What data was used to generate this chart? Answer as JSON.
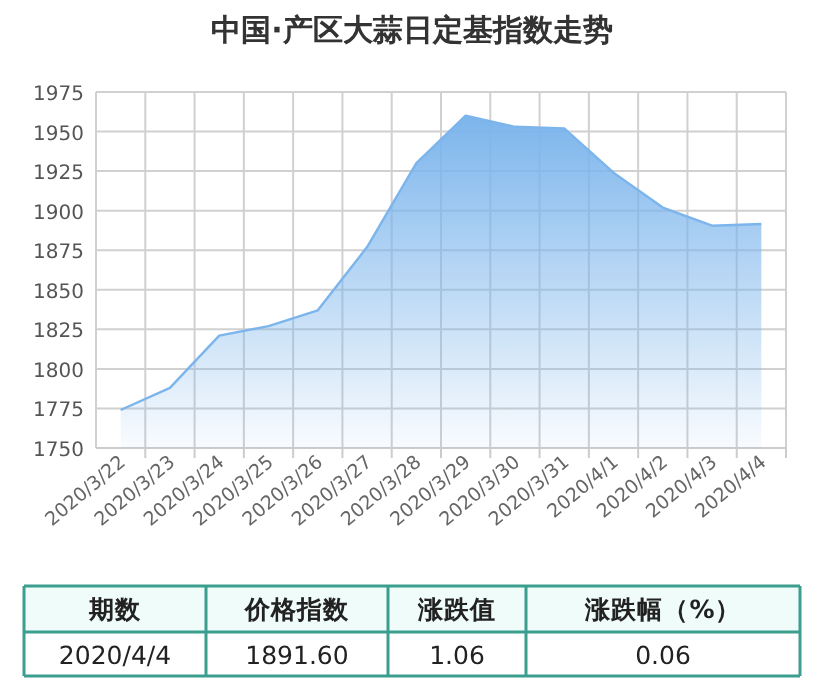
{
  "chart_data": {
    "type": "area",
    "title": "中国·产区大蒜日定基指数走势",
    "categories": [
      "2020/3/22",
      "2020/3/23",
      "2020/3/24",
      "2020/3/25",
      "2020/3/26",
      "2020/3/27",
      "2020/3/28",
      "2020/3/29",
      "2020/3/30",
      "2020/3/31",
      "2020/4/1",
      "2020/4/2",
      "2020/4/3",
      "2020/4/4"
    ],
    "series": [
      {
        "color": "#7cb5ec",
        "values": [
          1774,
          1788,
          1821,
          1827,
          1837,
          1877,
          1930,
          1960,
          1953,
          1952,
          1924,
          1902,
          1890.5,
          1891.6
        ]
      }
    ],
    "ylim": [
      1750,
      1975
    ],
    "yticks": [
      1750,
      1775,
      1800,
      1825,
      1850,
      1875,
      1900,
      1925,
      1950,
      1975
    ],
    "grid": true,
    "annotations": [
      "期数",
      "价格指数",
      "涨跌值",
      "涨跌幅（%）",
      "2020/4/4",
      "1891.60",
      "1.06",
      "0.06"
    ]
  }
}
